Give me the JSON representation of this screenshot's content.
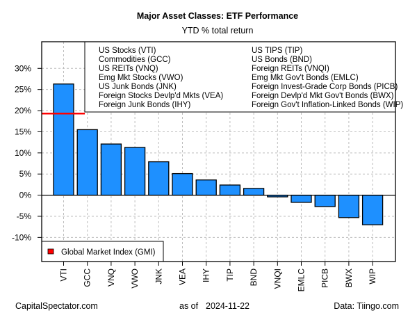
{
  "chart_data": {
    "type": "bar",
    "title": "Major Asset Classes: ETF Performance",
    "subtitle": "YTD % total return",
    "xlabel": "",
    "ylabel": "",
    "ylim": [
      -15.7,
      36.3
    ],
    "yticks": [
      -10,
      -5,
      0,
      5,
      10,
      15,
      20,
      25,
      30
    ],
    "ytick_labels": [
      "-10%",
      "-5%",
      "0%",
      "5%",
      "10%",
      "15%",
      "20%",
      "25%",
      "30%"
    ],
    "grid": true,
    "categories": [
      "VTI",
      "GCC",
      "VNQ",
      "VWO",
      "JNK",
      "VEA",
      "IHY",
      "TIP",
      "BND",
      "VNQI",
      "EMLC",
      "PICB",
      "BWX",
      "WIP"
    ],
    "values": [
      26.3,
      15.5,
      12.1,
      11.3,
      7.9,
      5.1,
      3.6,
      2.4,
      1.6,
      -0.4,
      -1.7,
      -2.7,
      -5.3,
      -7.0
    ],
    "bar_color": "#1E90FF",
    "reference_line": {
      "name": "Global Market Index (GMI)",
      "value": 19.3,
      "color": "#FF0000"
    },
    "legend": {
      "placement": "top-right",
      "left_column": [
        "US Stocks (VTI)",
        "Commodities (GCC)",
        "US REITs (VNQ)",
        "Emg Mkt Stocks (VWO)",
        "US Junk Bonds (JNK)",
        "Foreign Stocks Devlp'd Mkts (VEA)",
        "Foreign Junk Bonds (IHY)"
      ],
      "right_column": [
        "US TIPS (TIP)",
        "US Bonds (BND)",
        "Foreign REITs (VNQI)",
        "Emg Mkt Gov't Bonds (EMLC)",
        "Foreign Invest-Grade Corp Bonds (PICB)",
        "Foreign Devlp'd Mkt Gov't Bonds (BWX)",
        "Foreign Gov't Inflation-Linked Bonds (WIP)"
      ]
    },
    "gmi_legend": {
      "placement": "bottom-left",
      "label": "Global Market Index (GMI)"
    }
  },
  "footer": {
    "left": "CapitalSpectator.com",
    "center_prefix": "as of",
    "center_date": "2024-11-22",
    "right": "Data: Tiingo.com"
  }
}
